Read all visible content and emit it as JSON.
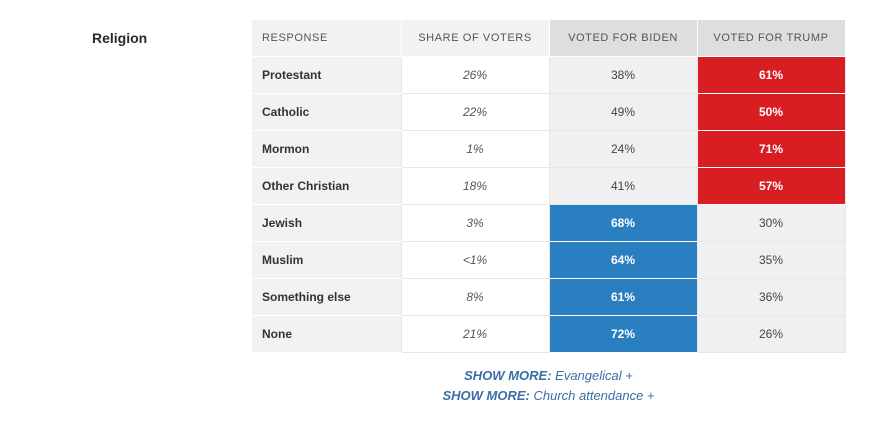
{
  "section": {
    "title": "Religion"
  },
  "table": {
    "headers": [
      "RESPONSE",
      "SHARE OF VOTERS",
      "VOTED FOR BIDEN",
      "VOTED FOR TRUMP"
    ],
    "rows": [
      {
        "response": "Protestant",
        "share": "26%",
        "biden": "38%",
        "trump": "61%",
        "winner": "trump"
      },
      {
        "response": "Catholic",
        "share": "22%",
        "biden": "49%",
        "trump": "50%",
        "winner": "trump"
      },
      {
        "response": "Mormon",
        "share": "1%",
        "biden": "24%",
        "trump": "71%",
        "winner": "trump"
      },
      {
        "response": "Other Christian",
        "share": "18%",
        "biden": "41%",
        "trump": "57%",
        "winner": "trump"
      },
      {
        "response": "Jewish",
        "share": "3%",
        "biden": "68%",
        "trump": "30%",
        "winner": "biden"
      },
      {
        "response": "Muslim",
        "share": "<1%",
        "biden": "64%",
        "trump": "35%",
        "winner": "biden"
      },
      {
        "response": "Something else",
        "share": "8%",
        "biden": "61%",
        "trump": "36%",
        "winner": "biden"
      },
      {
        "response": "None",
        "share": "21%",
        "biden": "72%",
        "trump": "26%",
        "winner": "biden"
      }
    ]
  },
  "show_more": [
    {
      "key": "SHOW MORE:",
      "label": "Evangelical +"
    },
    {
      "key": "SHOW MORE:",
      "label": "Church attendance +"
    }
  ],
  "colors": {
    "biden_win": "#2a7fc1",
    "trump_win": "#d91e23",
    "link": "#3a6ea8"
  }
}
